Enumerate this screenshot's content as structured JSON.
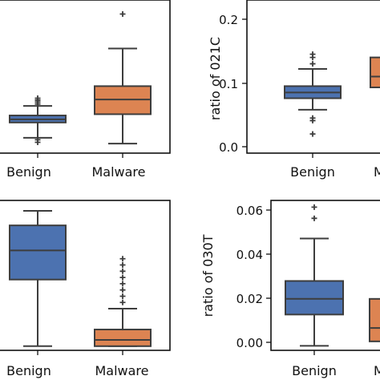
{
  "chart_data": [
    {
      "type": "box",
      "panel": "top-left",
      "title": "",
      "ylabel": "",
      "categories": [
        "Benign",
        "Malware"
      ],
      "colors": {
        "Benign": "#4c72b0",
        "Malware": "#dd8452"
      },
      "ylim": [
        -0.01,
        0.23
      ],
      "yticks": [],
      "boxes": [
        {
          "category": "Benign",
          "whislo": 0.014,
          "q1": 0.038,
          "median": 0.043,
          "q3": 0.049,
          "whishi": 0.064,
          "fliers": [
            0.007,
            0.011,
            0.067,
            0.07,
            0.073,
            0.076
          ]
        },
        {
          "category": "Malware",
          "whislo": 0.005,
          "q1": 0.051,
          "median": 0.074,
          "q3": 0.095,
          "whishi": 0.154,
          "fliers": [
            0.208
          ]
        }
      ]
    },
    {
      "type": "box",
      "panel": "top-right",
      "title": "",
      "ylabel": "ratio of 021C",
      "categories": [
        "Benign",
        "Malware"
      ],
      "category_labels": [
        "Benign",
        "M"
      ],
      "colors": {
        "Benign": "#4c72b0",
        "Malware": "#dd8452"
      },
      "ylim": [
        -0.01,
        0.23
      ],
      "yticks": [
        "0.0",
        "0.1",
        "0.2"
      ],
      "boxes": [
        {
          "category": "Benign",
          "whislo": 0.058,
          "q1": 0.076,
          "median": 0.085,
          "q3": 0.095,
          "whishi": 0.122,
          "fliers": [
            0.02,
            0.041,
            0.045,
            0.13,
            0.14,
            0.145
          ]
        },
        {
          "category": "Malware",
          "whislo": 0.06,
          "q1": 0.093,
          "median": 0.11,
          "q3": 0.14,
          "whishi": 0.175,
          "fliers": []
        }
      ]
    },
    {
      "type": "box",
      "panel": "bottom-left",
      "title": "",
      "ylabel": "",
      "categories": [
        "Benign",
        "Malware"
      ],
      "colors": {
        "Benign": "#4c72b0",
        "Malware": "#dd8452"
      },
      "ylim": [
        -0.002,
        0.07
      ],
      "yticks": [],
      "boxes": [
        {
          "category": "Benign",
          "whislo": 0.0,
          "q1": 0.032,
          "median": 0.046,
          "q3": 0.058,
          "whishi": 0.065,
          "fliers": []
        },
        {
          "category": "Malware",
          "whislo": 0.0,
          "q1": 0.0,
          "median": 0.003,
          "q3": 0.008,
          "whishi": 0.018,
          "fliers": [
            0.021,
            0.024,
            0.027,
            0.03,
            0.033,
            0.036,
            0.039,
            0.042
          ]
        }
      ]
    },
    {
      "type": "box",
      "panel": "bottom-right",
      "title": "",
      "ylabel": "ratio of 030T",
      "categories": [
        "Benign",
        "Malware"
      ],
      "category_labels": [
        "Benign",
        "M"
      ],
      "colors": {
        "Benign": "#4c72b0",
        "Malware": "#dd8452"
      },
      "ylim": [
        -0.002,
        0.065
      ],
      "yticks": [
        "0.00",
        "0.02",
        "0.04",
        "0.06"
      ],
      "boxes": [
        {
          "category": "Benign",
          "whislo": 0.0,
          "q1": 0.014,
          "median": 0.021,
          "q3": 0.029,
          "whishi": 0.048,
          "fliers": [
            0.057,
            0.062
          ]
        },
        {
          "category": "Malware",
          "whislo": 0.0,
          "q1": 0.002,
          "median": 0.008,
          "q3": 0.021,
          "whishi": 0.04,
          "fliers": []
        }
      ]
    }
  ]
}
